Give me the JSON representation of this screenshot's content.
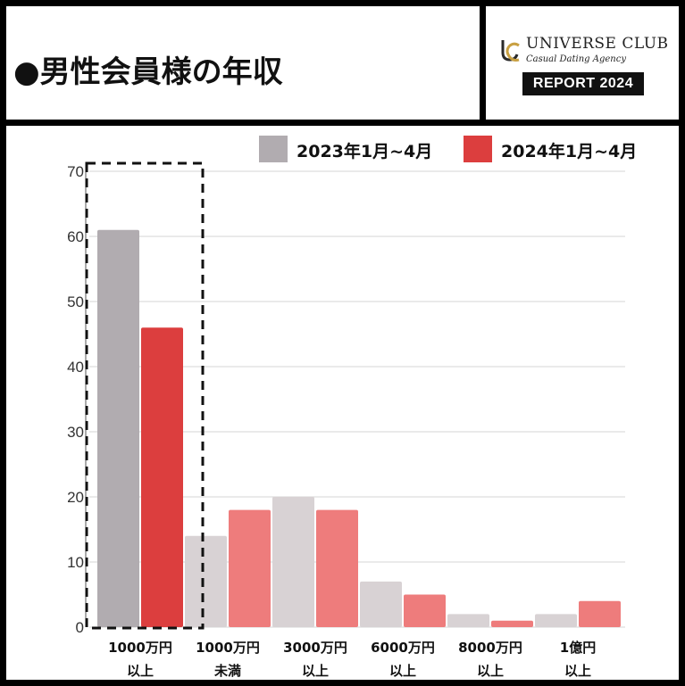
{
  "header": {
    "title": "●男性会員様の年収"
  },
  "brand": {
    "logo_mark": "UC",
    "name": "UNIVERSE CLUB",
    "tagline": "Casual Dating Agency",
    "badge": "REPORT 2024"
  },
  "legend": [
    {
      "label": "2023年1月~4月",
      "color": "#b1acb0"
    },
    {
      "label": "2024年1月~4月",
      "color": "#dc3e3e"
    }
  ],
  "chart_data": {
    "type": "bar",
    "categories": [
      [
        "1000万円",
        "以上"
      ],
      [
        "1000万円",
        "未満"
      ],
      [
        "3000万円",
        "以上"
      ],
      [
        "6000万円",
        "以上"
      ],
      [
        "8000万円",
        "以上"
      ],
      [
        "1億円",
        "以上"
      ]
    ],
    "series": [
      {
        "name": "2023年1月~4月",
        "values": [
          61,
          14,
          20,
          7,
          2,
          2
        ],
        "color": "#d8d2d4",
        "highlight_color": "#b1acb0"
      },
      {
        "name": "2024年1月~4月",
        "values": [
          46,
          18,
          18,
          5,
          1,
          4
        ],
        "color": "#ee7c7c",
        "highlight_color": "#dc3e3e"
      }
    ],
    "highlighted_category": 0,
    "ylim": [
      0,
      70
    ],
    "yticks": [
      0,
      10,
      20,
      30,
      40,
      50,
      60,
      70
    ],
    "grid": true,
    "legend_position": "top-right",
    "annotation": "dashed box around first category"
  }
}
